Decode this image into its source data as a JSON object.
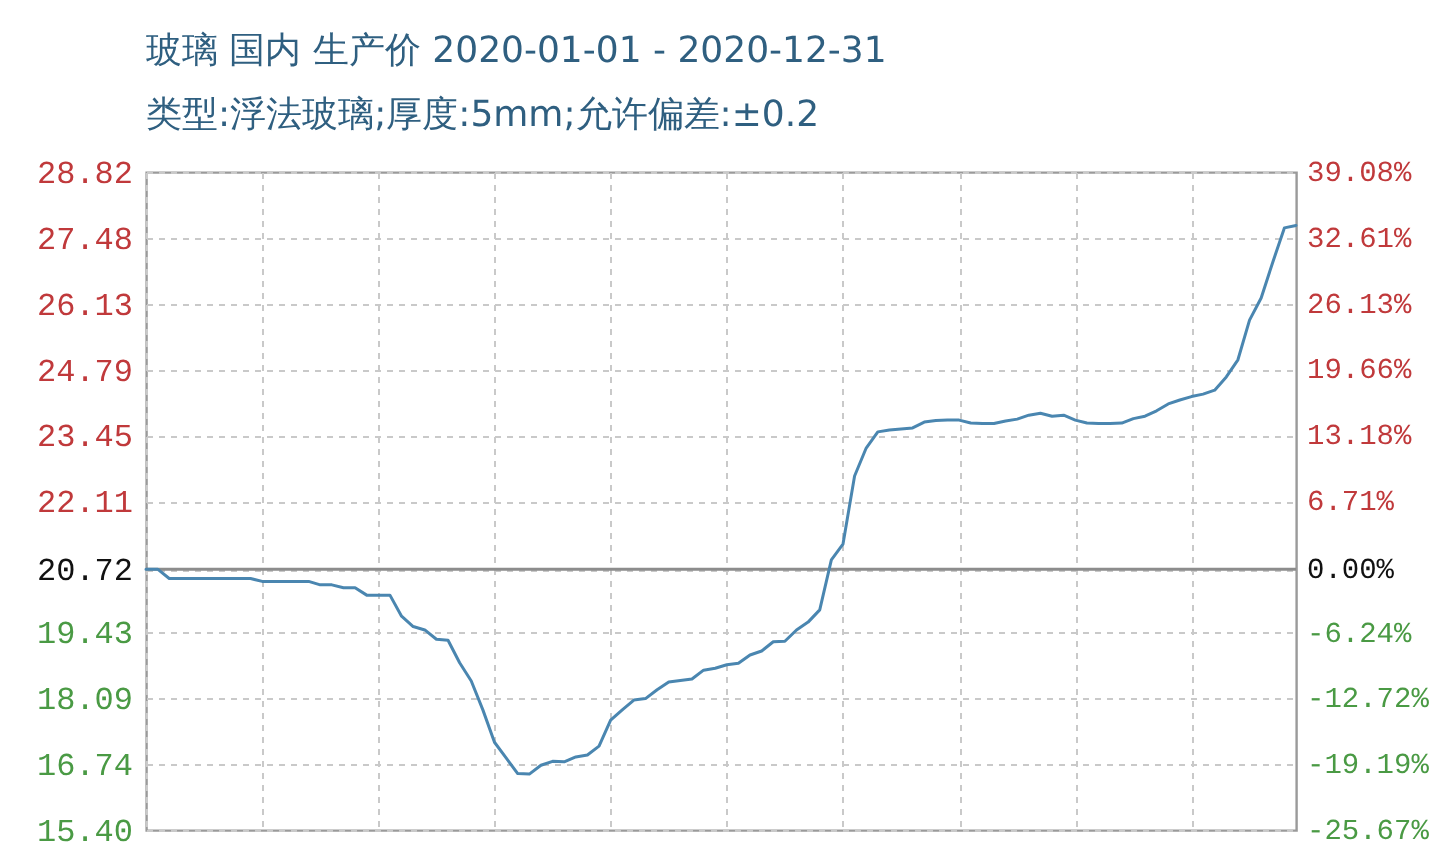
{
  "chart_data": {
    "type": "line",
    "title": "玻璃 国内 生产价 2020-01-01 - 2020-12-31",
    "subtitle": "类型:浮法玻璃;厚度:5mm;允许偏差:±0.2",
    "categories": [
      null,
      null,
      null,
      null,
      null,
      null,
      null,
      null,
      null,
      null,
      null,
      null,
      null,
      null,
      null,
      null,
      null,
      null,
      null,
      null,
      null,
      null,
      null,
      null,
      null,
      null,
      null,
      null,
      null,
      null,
      null,
      null,
      null,
      null,
      null,
      null,
      null,
      null,
      null,
      null,
      null,
      null,
      null,
      null,
      null,
      null,
      null,
      null,
      null,
      null,
      null,
      null,
      null,
      null,
      null,
      null,
      null,
      null,
      null,
      null,
      null,
      null,
      null,
      null,
      null,
      null,
      null,
      null,
      null,
      null,
      null,
      null,
      null,
      null,
      null,
      null,
      null,
      null,
      null,
      null,
      null,
      null,
      null,
      null,
      null,
      null,
      null,
      null,
      null,
      null,
      null,
      null,
      null,
      null,
      null,
      null,
      null,
      null,
      null,
      null
    ],
    "series": [
      {
        "color": "#4a86b0",
        "values": [
          20.72,
          20.72,
          20.53,
          20.53,
          20.53,
          20.53,
          20.53,
          20.53,
          20.53,
          20.53,
          20.47,
          20.47,
          20.47,
          20.47,
          20.47,
          20.4,
          20.4,
          20.34,
          20.34,
          20.19,
          20.19,
          20.19,
          19.76,
          19.55,
          19.48,
          19.29,
          19.27,
          18.81,
          18.44,
          17.85,
          17.19,
          16.87,
          16.55,
          16.54,
          16.72,
          16.8,
          16.79,
          16.89,
          16.93,
          17.11,
          17.64,
          17.85,
          18.05,
          18.08,
          18.26,
          18.42,
          18.45,
          18.48,
          18.66,
          18.7,
          18.77,
          18.8,
          18.97,
          19.05,
          19.24,
          19.25,
          19.48,
          19.64,
          19.89,
          20.91,
          21.23,
          22.62,
          23.19,
          23.52,
          23.56,
          23.58,
          23.6,
          23.72,
          23.75,
          23.76,
          23.76,
          23.7,
          23.69,
          23.69,
          23.74,
          23.78,
          23.86,
          23.9,
          23.84,
          23.86,
          23.76,
          23.7,
          23.69,
          23.69,
          23.7,
          23.79,
          23.84,
          23.95,
          24.09,
          24.17,
          24.24,
          24.29,
          24.37,
          24.64,
          24.99,
          25.8,
          26.25,
          26.98,
          27.68,
          27.73
        ]
      }
    ],
    "ylim": [
      15.4,
      28.82
    ],
    "yticks": [
      28.82,
      27.48,
      26.13,
      24.79,
      23.45,
      22.11,
      20.72,
      19.43,
      18.09,
      16.74,
      {
        "value": 15.4,
        "label": "15.40"
      }
    ],
    "y2lim": [
      -25.67,
      39.08
    ],
    "y2ticks": [
      {
        "value": 39.08,
        "label": "39.08%"
      },
      {
        "value": 32.61,
        "label": "32.61%"
      },
      {
        "value": 26.13,
        "label": "26.13%"
      },
      {
        "value": 19.66,
        "label": "19.66%"
      },
      {
        "value": 13.18,
        "label": "13.18%"
      },
      {
        "value": 6.71,
        "label": "6.71%"
      },
      {
        "value": 0,
        "label": "0.00%"
      },
      {
        "value": -6.24,
        "label": "-6.24%"
      },
      {
        "value": -12.72,
        "label": "-12.72%"
      },
      {
        "value": -19.19,
        "label": "-19.19%"
      },
      {
        "value": -25.67,
        "label": "-25.67%"
      }
    ],
    "ref_lines": [
      {
        "axis": "y2",
        "value": 0,
        "color": "#8c8c8c"
      }
    ],
    "grid": true
  }
}
